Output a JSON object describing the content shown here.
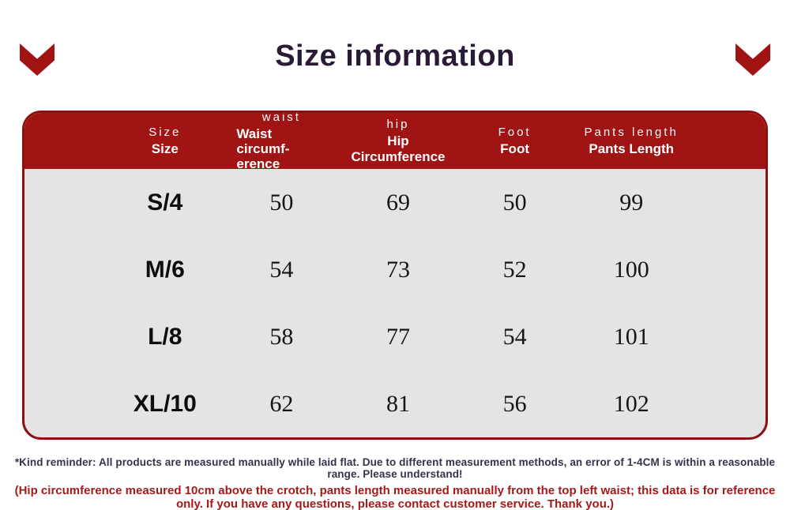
{
  "page": {
    "title": "Size information"
  },
  "decorations": {
    "left_icon": "chevron-down-icon",
    "right_icon": "chevron-down-icon"
  },
  "table": {
    "columns": [
      {
        "label": "Size",
        "sublabel": "Size"
      },
      {
        "label": "waist",
        "sublabel": "Waist circumf-erence"
      },
      {
        "label": "hip",
        "sublabel": "Hip Circumference"
      },
      {
        "label": "Foot",
        "sublabel": "Foot"
      },
      {
        "label": "Pants length",
        "sublabel": "Pants Length"
      }
    ],
    "rows": [
      {
        "size": "S/4",
        "waist": "50",
        "hip": "69",
        "foot": "50",
        "pants_length": "99"
      },
      {
        "size": "M/6",
        "waist": "54",
        "hip": "73",
        "foot": "52",
        "pants_length": "100"
      },
      {
        "size": "L/8",
        "waist": "58",
        "hip": "77",
        "foot": "54",
        "pants_length": "101"
      },
      {
        "size": "XL/10",
        "waist": "62",
        "hip": "81",
        "foot": "56",
        "pants_length": "102"
      }
    ]
  },
  "notes": {
    "primary": "*Kind reminder: All products are measured manually while laid flat. Due to different measurement methods, an error of 1-4CM is within a reasonable range. Please understand!",
    "secondary": "(Hip circumference measured 10cm above the crotch, pants length measured manually from the top left waist; this data is for reference only. If you have any questions, please contact customer service. Thank you.)"
  },
  "colors": {
    "accent_red": "#a01414",
    "border_red": "#8e1111",
    "title_dark": "#2a1a35",
    "note_dark": "#39304a",
    "note_red": "#a31a1a",
    "body_gray": "#e5e3e3"
  }
}
